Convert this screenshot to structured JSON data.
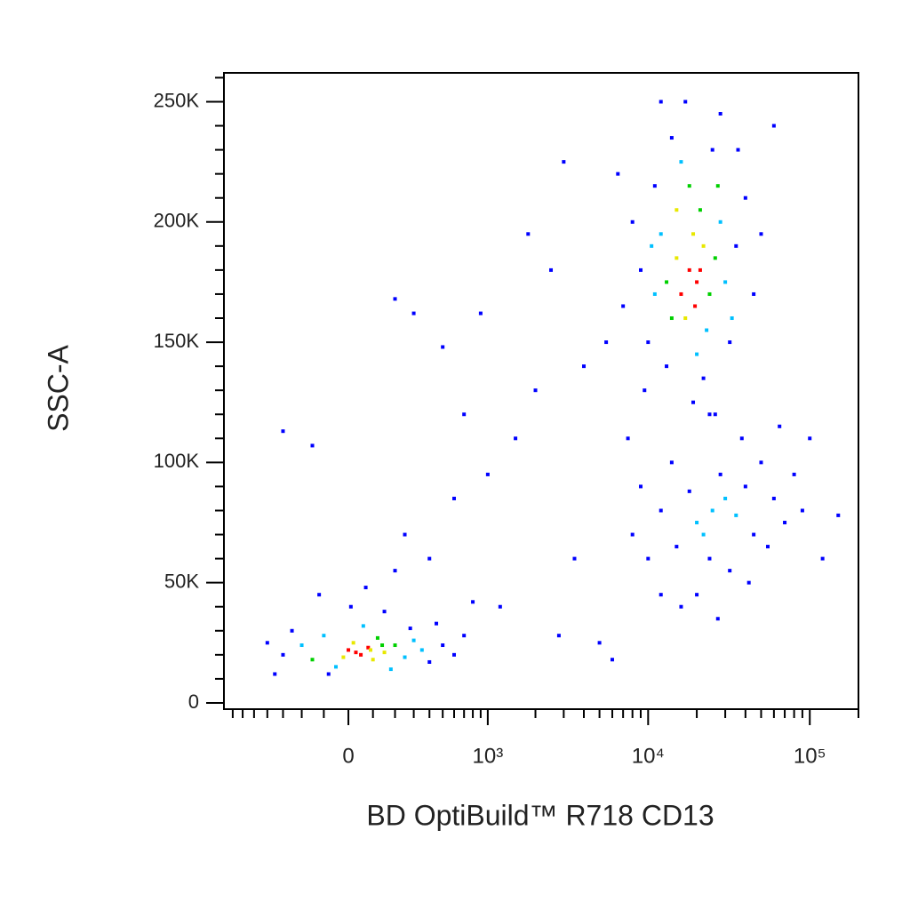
{
  "chart_data": {
    "type": "scatter",
    "x_label": "BD OptiBuild™ R718 CD13",
    "y_label": "SSC-A",
    "xscale": "asinh",
    "xcofactor": 280,
    "xlim": [
      -800,
      200000
    ],
    "xticks": [
      0,
      {
        "value": 1000,
        "label": "10³"
      },
      {
        "value": 10000,
        "label": "10⁴"
      },
      {
        "value": 100000,
        "label": "10⁵"
      }
    ],
    "xminorticks": [
      -700,
      -600,
      -500,
      -400,
      -300,
      -200,
      -100,
      100,
      200,
      300,
      400,
      500,
      600,
      700,
      800,
      900,
      2000,
      3000,
      4000,
      5000,
      6000,
      7000,
      8000,
      9000,
      20000,
      30000,
      40000,
      50000,
      60000,
      70000,
      80000,
      90000,
      200000
    ],
    "ylim": [
      -2600,
      262000
    ],
    "yticks": [
      0,
      {
        "value": 50000,
        "label": "50K"
      },
      {
        "value": 100000,
        "label": "100K"
      },
      {
        "value": 150000,
        "label": "150K"
      },
      {
        "value": 200000,
        "label": "200K"
      },
      {
        "value": 250000,
        "label": "250K"
      }
    ],
    "yminorticks": [
      10000,
      20000,
      30000,
      40000,
      60000,
      70000,
      80000,
      90000,
      110000,
      120000,
      130000,
      140000,
      160000,
      170000,
      180000,
      190000,
      210000,
      220000,
      230000,
      240000,
      260000
    ],
    "x": [
      -300,
      -200,
      -150,
      -100,
      -50,
      0,
      20,
      50,
      80,
      100,
      120,
      150,
      200,
      250,
      300,
      350,
      400,
      500,
      600,
      -250,
      -80,
      60,
      180,
      280,
      -400,
      700,
      30,
      90,
      -20,
      140,
      10,
      -120,
      200,
      400,
      150,
      800,
      -350,
      450,
      70,
      250,
      18000,
      20000,
      16000,
      22000,
      15000,
      19000,
      17000,
      24000,
      13000,
      21000,
      14000,
      26000,
      18000,
      12000,
      23000,
      11000,
      28000,
      16000,
      20000,
      30000,
      10000,
      9000,
      35000,
      14000,
      25000,
      22000,
      13000,
      40000,
      8000,
      32000,
      17000,
      28000,
      7000,
      45000,
      11000,
      19000,
      36000,
      9500,
      50000,
      6500,
      12000,
      24000,
      15000,
      19500,
      21000,
      27000,
      10500,
      33000,
      60000,
      5500,
      25000,
      20000,
      30000,
      22000,
      35000,
      18000,
      28000,
      40000,
      15000,
      45000,
      12000,
      50000,
      24000,
      32000,
      60000,
      14000,
      70000,
      10000,
      38000,
      20000,
      80000,
      9000,
      55000,
      16000,
      90000,
      27000,
      100000,
      8000,
      65000,
      12000,
      150000,
      42000,
      7500,
      26000,
      120000,
      -300,
      200,
      300,
      500,
      700,
      1000,
      1500,
      2000,
      900,
      1800,
      3000,
      2500,
      4000,
      3500,
      1200,
      5000,
      2800,
      600,
      -150,
      6000
    ],
    "y": [
      20000,
      24000,
      18000,
      28000,
      15000,
      22000,
      25000,
      20000,
      23000,
      18000,
      27000,
      21000,
      24000,
      19000,
      26000,
      22000,
      17000,
      24000,
      20000,
      30000,
      12000,
      32000,
      14000,
      31000,
      25000,
      28000,
      21000,
      22000,
      19000,
      24000,
      40000,
      45000,
      55000,
      60000,
      38000,
      42000,
      12000,
      33000,
      48000,
      70000,
      180000,
      175000,
      170000,
      190000,
      185000,
      195000,
      160000,
      170000,
      175000,
      205000,
      160000,
      185000,
      215000,
      195000,
      155000,
      170000,
      200000,
      225000,
      145000,
      175000,
      150000,
      180000,
      190000,
      235000,
      230000,
      135000,
      140000,
      210000,
      200000,
      150000,
      250000,
      245000,
      165000,
      170000,
      215000,
      125000,
      230000,
      130000,
      195000,
      220000,
      250000,
      120000,
      205000,
      165000,
      180000,
      215000,
      190000,
      160000,
      240000,
      150000,
      80000,
      75000,
      85000,
      70000,
      78000,
      88000,
      95000,
      90000,
      65000,
      70000,
      80000,
      100000,
      60000,
      55000,
      85000,
      100000,
      75000,
      60000,
      110000,
      45000,
      95000,
      90000,
      65000,
      40000,
      80000,
      35000,
      110000,
      70000,
      115000,
      45000,
      78000,
      50000,
      110000,
      120000,
      60000,
      113000,
      168000,
      162000,
      148000,
      120000,
      95000,
      110000,
      130000,
      162000,
      195000,
      225000,
      180000,
      140000,
      60000,
      40000,
      25000,
      28000,
      85000,
      107000,
      18000
    ],
    "colors": [
      "#0000ff",
      "#00c0ff",
      "#00d000",
      "#00c0ff",
      "#00c0ff",
      "#ff0000",
      "#e8e800",
      "#ff0000",
      "#ff0000",
      "#e8e800",
      "#00d000",
      "#e8e800",
      "#00d000",
      "#00c0ff",
      "#00c0ff",
      "#00c0ff",
      "#0000ff",
      "#0000ff",
      "#0000ff",
      "#0000ff",
      "#0000ff",
      "#00c0ff",
      "#00c0ff",
      "#0000ff",
      "#0000ff",
      "#0000ff",
      "#ff0000",
      "#e8e800",
      "#e8e800",
      "#00d000",
      "#0000ff",
      "#0000ff",
      "#0000ff",
      "#0000ff",
      "#0000ff",
      "#0000ff",
      "#0000ff",
      "#0000ff",
      "#0000ff",
      "#0000ff",
      "#ff0000",
      "#ff0000",
      "#ff0000",
      "#e8e800",
      "#e8e800",
      "#e8e800",
      "#e8e800",
      "#00d000",
      "#00d000",
      "#00d000",
      "#00d000",
      "#00d000",
      "#00d000",
      "#00c0ff",
      "#00c0ff",
      "#00c0ff",
      "#00c0ff",
      "#00c0ff",
      "#00c0ff",
      "#00c0ff",
      "#0000ff",
      "#0000ff",
      "#0000ff",
      "#0000ff",
      "#0000ff",
      "#0000ff",
      "#0000ff",
      "#0000ff",
      "#0000ff",
      "#0000ff",
      "#0000ff",
      "#0000ff",
      "#0000ff",
      "#0000ff",
      "#0000ff",
      "#0000ff",
      "#0000ff",
      "#0000ff",
      "#0000ff",
      "#0000ff",
      "#0000ff",
      "#0000ff",
      "#e8e800",
      "#ff0000",
      "#ff0000",
      "#00d000",
      "#00c0ff",
      "#00c0ff",
      "#0000ff",
      "#0000ff",
      "#00c0ff",
      "#00c0ff",
      "#00c0ff",
      "#00c0ff",
      "#00c0ff",
      "#0000ff",
      "#0000ff",
      "#0000ff",
      "#0000ff",
      "#0000ff",
      "#0000ff",
      "#0000ff",
      "#0000ff",
      "#0000ff",
      "#0000ff",
      "#0000ff",
      "#0000ff",
      "#0000ff",
      "#0000ff",
      "#0000ff",
      "#0000ff",
      "#0000ff",
      "#0000ff",
      "#0000ff",
      "#0000ff",
      "#0000ff",
      "#0000ff",
      "#0000ff",
      "#0000ff",
      "#0000ff",
      "#0000ff",
      "#0000ff",
      "#0000ff",
      "#0000ff",
      "#0000ff",
      "#0000ff",
      "#0000ff",
      "#0000ff",
      "#0000ff",
      "#0000ff",
      "#0000ff",
      "#0000ff",
      "#0000ff",
      "#0000ff",
      "#0000ff",
      "#0000ff",
      "#0000ff",
      "#0000ff",
      "#0000ff",
      "#0000ff",
      "#0000ff",
      "#0000ff",
      "#0000ff",
      "#0000ff",
      "#0000ff"
    ]
  }
}
